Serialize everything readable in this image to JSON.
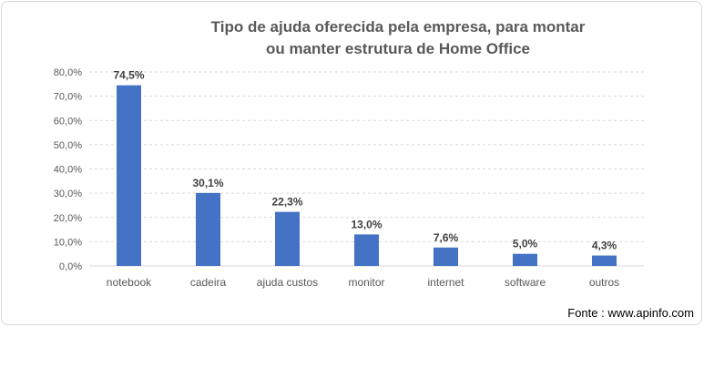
{
  "chart_data": {
    "type": "bar",
    "title_line1": "Tipo de ajuda oferecida pela empresa, para montar",
    "title_line2": "ou manter estrutura de Home Office",
    "categories": [
      "notebook",
      "cadeira",
      "ajuda custos",
      "monitor",
      "internet",
      "software",
      "outros"
    ],
    "values": [
      74.5,
      30.1,
      22.3,
      13.0,
      7.6,
      5.0,
      4.3
    ],
    "data_labels": [
      "74,5%",
      "30,1%",
      "22,3%",
      "13,0%",
      "7,6%",
      "5,0%",
      "4,3%"
    ],
    "ylim": [
      0,
      80
    ],
    "y_ticks": [
      0,
      10,
      20,
      30,
      40,
      50,
      60,
      70,
      80
    ],
    "y_tick_labels": [
      "0,0%",
      "10,0%",
      "20,0%",
      "30,0%",
      "40,0%",
      "50,0%",
      "60,0%",
      "70,0%",
      "80,0%"
    ],
    "xlabel": "",
    "ylabel": "",
    "grid": true,
    "gridline_style": "dashed",
    "legend": "none",
    "bar_color": "#4472c4",
    "grid_color": "#d9d9d9",
    "label_color": "#595959",
    "data_label_color": "#404040"
  },
  "source": "Fonte : www.apinfo.com"
}
